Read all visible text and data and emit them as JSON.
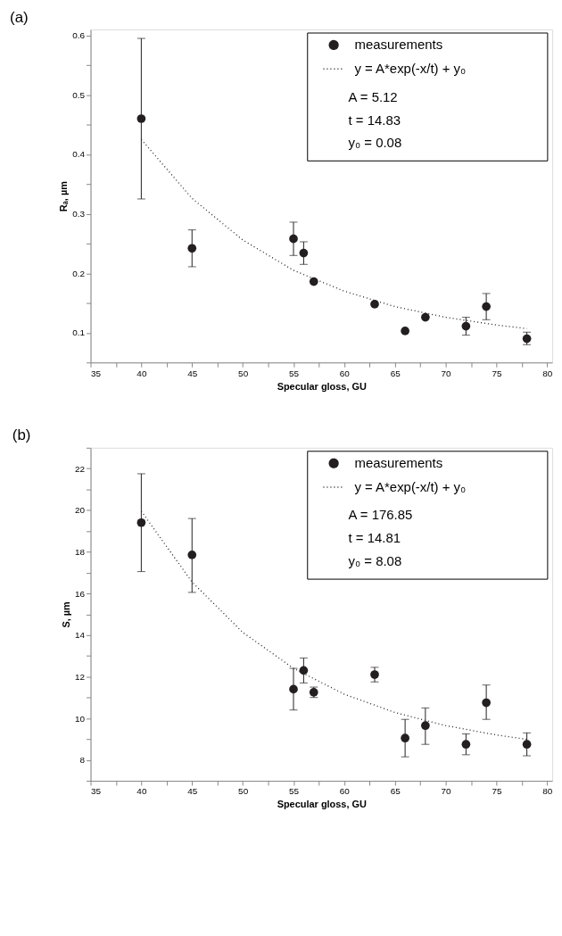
{
  "chart_data": [
    {
      "type": "scatter",
      "title": "(a)",
      "xlabel": "Specular gloss, GU",
      "ylabel": "Rₐ, µm",
      "xlim": [
        35,
        80.5
      ],
      "ylim": [
        0.05,
        0.61
      ],
      "xticks": [
        35,
        {
          "value": 37.5,
          "label": null
        },
        40,
        {
          "value": 42.5,
          "label": null
        },
        45,
        {
          "value": 47.5,
          "label": null
        },
        50,
        {
          "value": 52.5,
          "label": null
        },
        55,
        {
          "value": 57.5,
          "label": null
        },
        60,
        {
          "value": 62.5,
          "label": null
        },
        65,
        {
          "value": 67.5,
          "label": null
        },
        70,
        {
          "value": 72.5,
          "label": null
        },
        75,
        {
          "value": 77.5,
          "label": null
        },
        80
      ],
      "yticks": [
        {
          "value": 0.05,
          "label": null
        },
        0.1,
        {
          "value": 0.15,
          "label": null
        },
        0.2,
        {
          "value": 0.25,
          "label": null
        },
        0.3,
        {
          "value": 0.35,
          "label": null
        },
        0.4,
        {
          "value": 0.45,
          "label": null
        },
        0.5,
        {
          "value": 0.55,
          "label": null
        },
        0.6
      ],
      "legend": "top right",
      "series": [
        {
          "name": "measurements",
          "type": "scatter",
          "marker": "circle",
          "color": "#231f20",
          "x": [
            40,
            45,
            55,
            56,
            57,
            63,
            66,
            68,
            72,
            74,
            78
          ],
          "values": [
            0.46,
            0.242,
            0.258,
            0.234,
            0.186,
            0.148,
            0.103,
            0.126,
            0.111,
            0.144,
            0.09
          ],
          "errors": [
            [
              0.325,
              0.595
            ],
            [
              0.211,
              0.273
            ],
            [
              0.23,
              0.286
            ],
            [
              0.215,
              0.253
            ],
            null,
            null,
            null,
            null,
            [
              0.096,
              0.126
            ],
            [
              0.122,
              0.166
            ],
            [
              0.08,
              0.101
            ]
          ]
        },
        {
          "name": "y = A*exp(-x/t) + y₀",
          "type": "line",
          "marker": "none",
          "line_style": "dotted",
          "color": "#231f20",
          "x": [
            40,
            45,
            50,
            55,
            60,
            65,
            70,
            75,
            78
          ],
          "values": [
            0.425,
            0.326,
            0.256,
            0.205,
            0.17,
            0.144,
            0.126,
            0.113,
            0.107
          ]
        }
      ],
      "annotations": [
        "A = 5.12",
        "t = 14.83",
        "y₀ = 0.08"
      ]
    },
    {
      "type": "scatter",
      "title": "(b)",
      "xlabel": "Specular gloss, GU",
      "ylabel": "S, µm",
      "xlim": [
        35,
        80.5
      ],
      "ylim": [
        7,
        23
      ],
      "xticks": [
        35,
        {
          "value": 37.5,
          "label": null
        },
        40,
        {
          "value": 42.5,
          "label": null
        },
        45,
        {
          "value": 47.5,
          "label": null
        },
        50,
        {
          "value": 52.5,
          "label": null
        },
        55,
        {
          "value": 57.5,
          "label": null
        },
        60,
        {
          "value": 62.5,
          "label": null
        },
        65,
        {
          "value": 67.5,
          "label": null
        },
        70,
        {
          "value": 72.5,
          "label": null
        },
        75,
        {
          "value": 77.5,
          "label": null
        },
        80
      ],
      "yticks": [
        {
          "value": 7,
          "label": null
        },
        8,
        {
          "value": 9,
          "label": null
        },
        10,
        {
          "value": 11,
          "label": null
        },
        12,
        {
          "value": 13,
          "label": null
        },
        14,
        {
          "value": 15,
          "label": null
        },
        16,
        {
          "value": 17,
          "label": null
        },
        18,
        {
          "value": 19,
          "label": null
        },
        20,
        {
          "value": 21,
          "label": null
        },
        22,
        {
          "value": 23,
          "label": null
        }
      ],
      "legend": "top right",
      "series": [
        {
          "name": "measurements",
          "type": "scatter",
          "marker": "circle",
          "color": "#231f20",
          "x": [
            40,
            45,
            55,
            56,
            57,
            63,
            66,
            68,
            72,
            74,
            78
          ],
          "values": [
            19.4,
            17.85,
            11.4,
            12.3,
            11.25,
            12.1,
            9.05,
            9.65,
            8.75,
            10.75,
            8.75
          ],
          "errors": [
            [
              17.05,
              21.75
            ],
            [
              16.05,
              19.6
            ],
            [
              10.4,
              12.4
            ],
            [
              11.7,
              12.9
            ],
            [
              11.0,
              11.5
            ],
            [
              11.75,
              12.45
            ],
            [
              8.15,
              9.95
            ],
            [
              8.75,
              10.5
            ],
            [
              8.25,
              9.25
            ],
            [
              9.95,
              11.6
            ],
            [
              8.2,
              9.3
            ]
          ]
        },
        {
          "name": "y = A*exp(-x/t) + y₀",
          "type": "line",
          "marker": "none",
          "line_style": "dotted",
          "color": "#231f20",
          "x": [
            40,
            45,
            50,
            55,
            60,
            65,
            70,
            75,
            78
          ],
          "values": [
            19.95,
            16.55,
            14.13,
            12.4,
            11.16,
            10.28,
            9.65,
            9.2,
            8.99
          ]
        }
      ],
      "annotations": [
        "A = 176.85",
        "t = 14.81",
        "y₀ = 8.08"
      ]
    }
  ]
}
